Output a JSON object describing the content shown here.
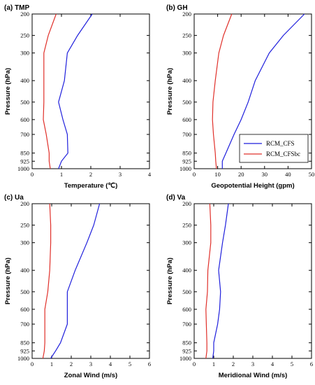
{
  "chart_data": [
    {
      "type": "line",
      "title": "(a) TMP",
      "xlabel": "Temperature (℃)",
      "ylabel": "Pressure (hPa)",
      "xlim": [
        0,
        4
      ],
      "xticks": [
        0,
        1,
        2,
        3,
        4
      ],
      "ylim": [
        1000,
        200
      ],
      "yticks": [
        200,
        250,
        300,
        400,
        500,
        600,
        700,
        850,
        925,
        1000
      ],
      "yscale": "log",
      "y": [
        200,
        250,
        300,
        400,
        500,
        600,
        700,
        850,
        925,
        1000
      ],
      "series": [
        {
          "name": "RCM_CFS",
          "color": "#1f1fdc",
          "values": [
            2.05,
            1.55,
            1.2,
            1.1,
            0.9,
            1.05,
            1.2,
            1.22,
            1.0,
            0.9
          ]
        },
        {
          "name": "RCM_CFSbc",
          "color": "#e0302a",
          "values": [
            0.82,
            0.55,
            0.4,
            0.4,
            0.4,
            0.38,
            0.48,
            0.58,
            0.58,
            0.62
          ]
        }
      ]
    },
    {
      "type": "line",
      "title": "(b) GH",
      "xlabel": "Geopotential Height (gpm)",
      "ylabel": "Pressure (hPa)",
      "xlim": [
        0,
        50
      ],
      "xticks": [
        0,
        10,
        20,
        30,
        40,
        50
      ],
      "ylim": [
        1000,
        200
      ],
      "yticks": [
        200,
        250,
        300,
        400,
        500,
        600,
        700,
        850,
        925,
        1000
      ],
      "yscale": "log",
      "y": [
        200,
        250,
        300,
        400,
        500,
        600,
        700,
        850,
        925,
        1000
      ],
      "series": [
        {
          "name": "RCM_CFS",
          "color": "#1f1fdc",
          "values": [
            47,
            38,
            32,
            26,
            23,
            20,
            17,
            13.5,
            12,
            12
          ]
        },
        {
          "name": "RCM_CFSbc",
          "color": "#e0302a",
          "values": [
            16,
            12.5,
            10.5,
            9,
            8,
            7.8,
            8.2,
            9,
            9.2,
            9.5
          ]
        }
      ],
      "legend": {
        "position": "lower-right",
        "entries": [
          "RCM_CFS",
          "RCM_CFSbc"
        ]
      }
    },
    {
      "type": "line",
      "title": "(c) Ua",
      "xlabel": "Zonal Wind (m/s)",
      "ylabel": "Pressure (hPa)",
      "xlim": [
        0,
        6
      ],
      "xticks": [
        0,
        1,
        2,
        3,
        4,
        5,
        6
      ],
      "ylim": [
        1000,
        200
      ],
      "yticks": [
        200,
        250,
        300,
        400,
        500,
        600,
        700,
        850,
        925,
        1000
      ],
      "yscale": "log",
      "y": [
        200,
        250,
        300,
        400,
        500,
        600,
        700,
        850,
        925,
        1000
      ],
      "series": [
        {
          "name": "RCM_CFS",
          "color": "#1f1fdc",
          "values": [
            3.45,
            3.15,
            2.8,
            2.2,
            1.8,
            1.8,
            1.8,
            1.45,
            1.2,
            0.95
          ]
        },
        {
          "name": "RCM_CFSbc",
          "color": "#e0302a",
          "values": [
            0.9,
            0.95,
            0.95,
            0.9,
            0.8,
            0.65,
            0.65,
            0.65,
            0.62,
            0.55
          ]
        }
      ]
    },
    {
      "type": "line",
      "title": "(d) Va",
      "xlabel": "Meridional Wind (m/s)",
      "ylabel": "Pressure (hPa)",
      "xlim": [
        0,
        6
      ],
      "xticks": [
        0,
        1,
        2,
        3,
        4,
        5,
        6
      ],
      "ylim": [
        1000,
        200
      ],
      "yticks": [
        200,
        250,
        300,
        400,
        500,
        600,
        700,
        850,
        925,
        1000
      ],
      "yscale": "log",
      "y": [
        200,
        250,
        300,
        400,
        500,
        600,
        700,
        850,
        925,
        1000
      ],
      "series": [
        {
          "name": "RCM_CFS",
          "color": "#1f1fdc",
          "values": [
            1.75,
            1.6,
            1.45,
            1.25,
            1.35,
            1.3,
            1.2,
            1.0,
            1.0,
            0.95
          ]
        },
        {
          "name": "RCM_CFSbc",
          "color": "#e0302a",
          "values": [
            0.8,
            0.85,
            0.85,
            0.7,
            0.68,
            0.6,
            0.62,
            0.65,
            0.65,
            0.6
          ]
        }
      ]
    }
  ]
}
